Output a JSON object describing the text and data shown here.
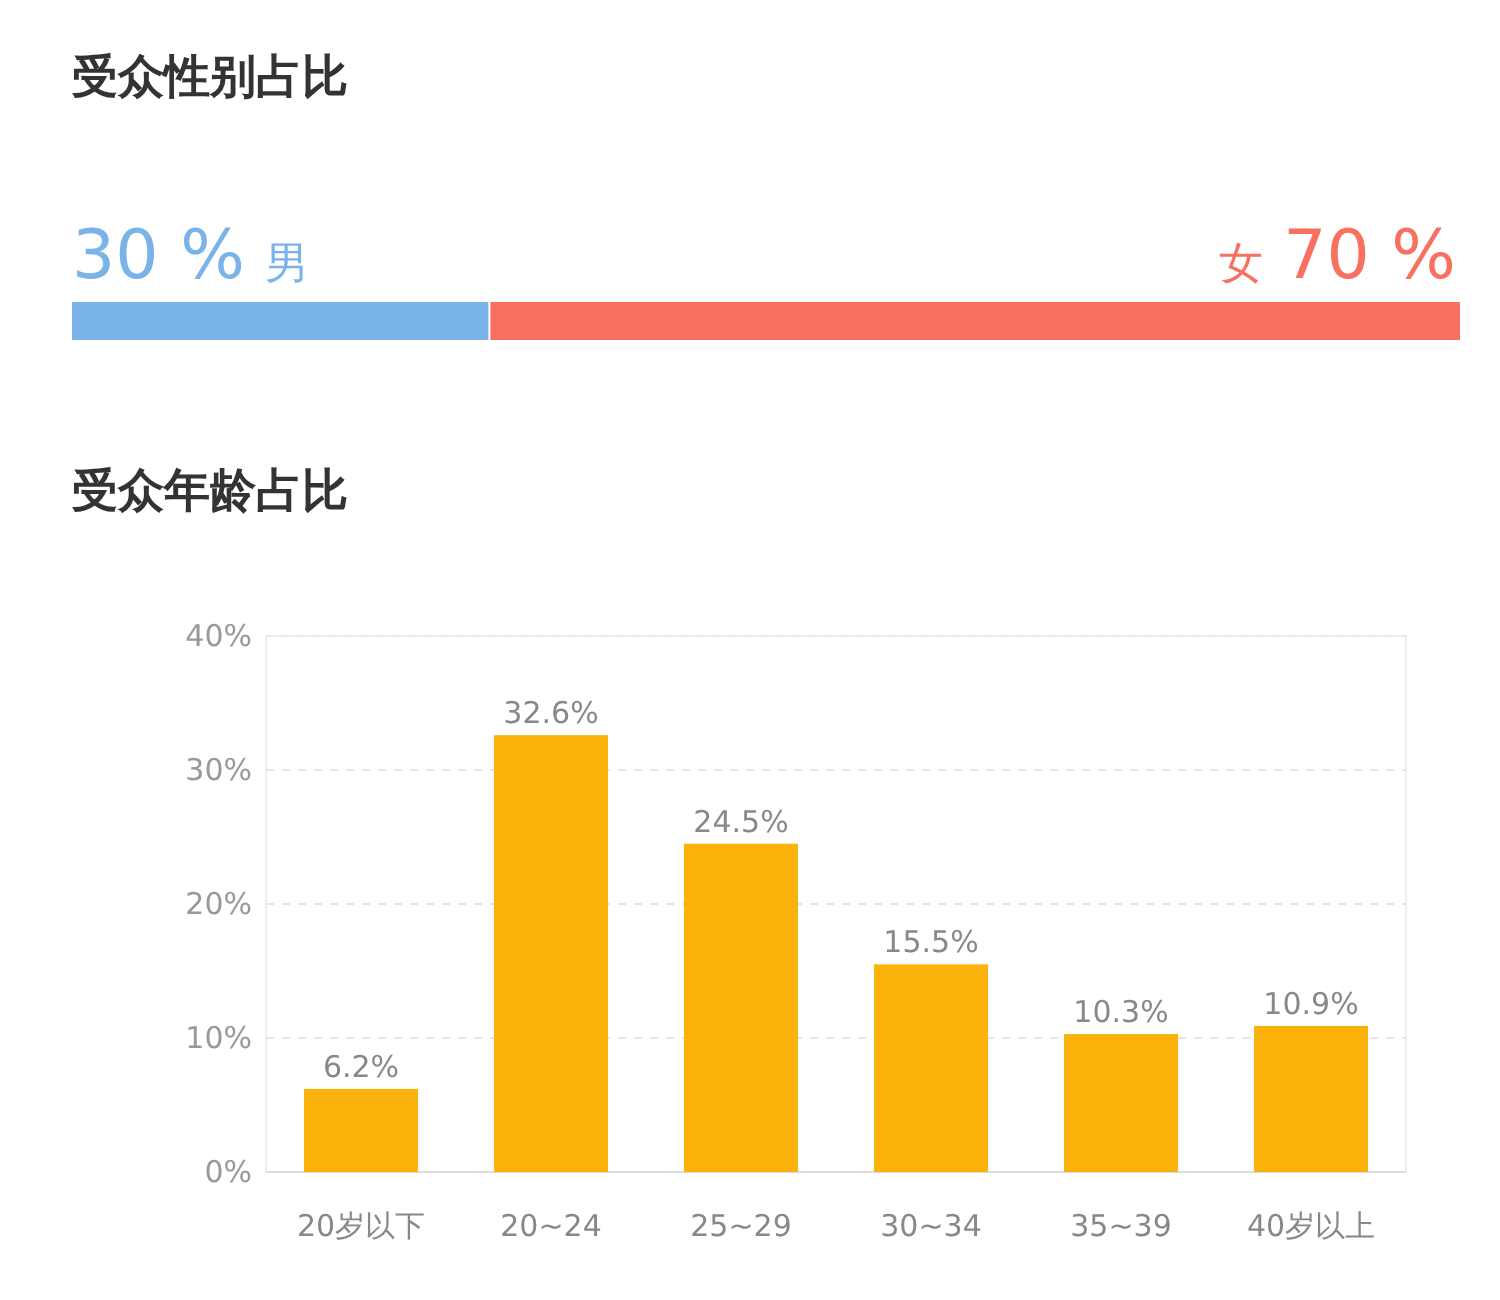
{
  "chart_data": [
    {
      "type": "bar",
      "title": "受众性别占比",
      "orientation": "horizontal",
      "stacked": true,
      "categories": [
        null
      ],
      "series": [
        {
          "name": "男",
          "color": "#7ab3e8",
          "values": [
            30
          ],
          "value_labels": [
            "30 %"
          ]
        },
        {
          "name": "女",
          "color": "#f97060",
          "values": [
            70
          ],
          "value_labels": [
            "70 %"
          ]
        }
      ]
    },
    {
      "type": "bar",
      "title": "受众年龄占比",
      "categories": [
        "20岁以下",
        "20~24",
        "25~29",
        "30~34",
        "35~39",
        "40岁以上"
      ],
      "values": [
        6.2,
        32.6,
        24.5,
        15.5,
        10.3,
        10.9
      ],
      "color": "#fbb20a",
      "value_labels": [
        "6.2%",
        "32.6%",
        "24.5%",
        "15.5%",
        "10.3%",
        "10.9%"
      ],
      "ylim": [
        0,
        40
      ],
      "yticks": [
        {
          "value": 0,
          "label": "0%"
        },
        {
          "value": 10,
          "label": "10%"
        },
        {
          "value": 20,
          "label": "20%"
        },
        {
          "value": 30,
          "label": "30%"
        },
        {
          "value": 40,
          "label": "40%"
        }
      ],
      "grid": "y"
    }
  ]
}
